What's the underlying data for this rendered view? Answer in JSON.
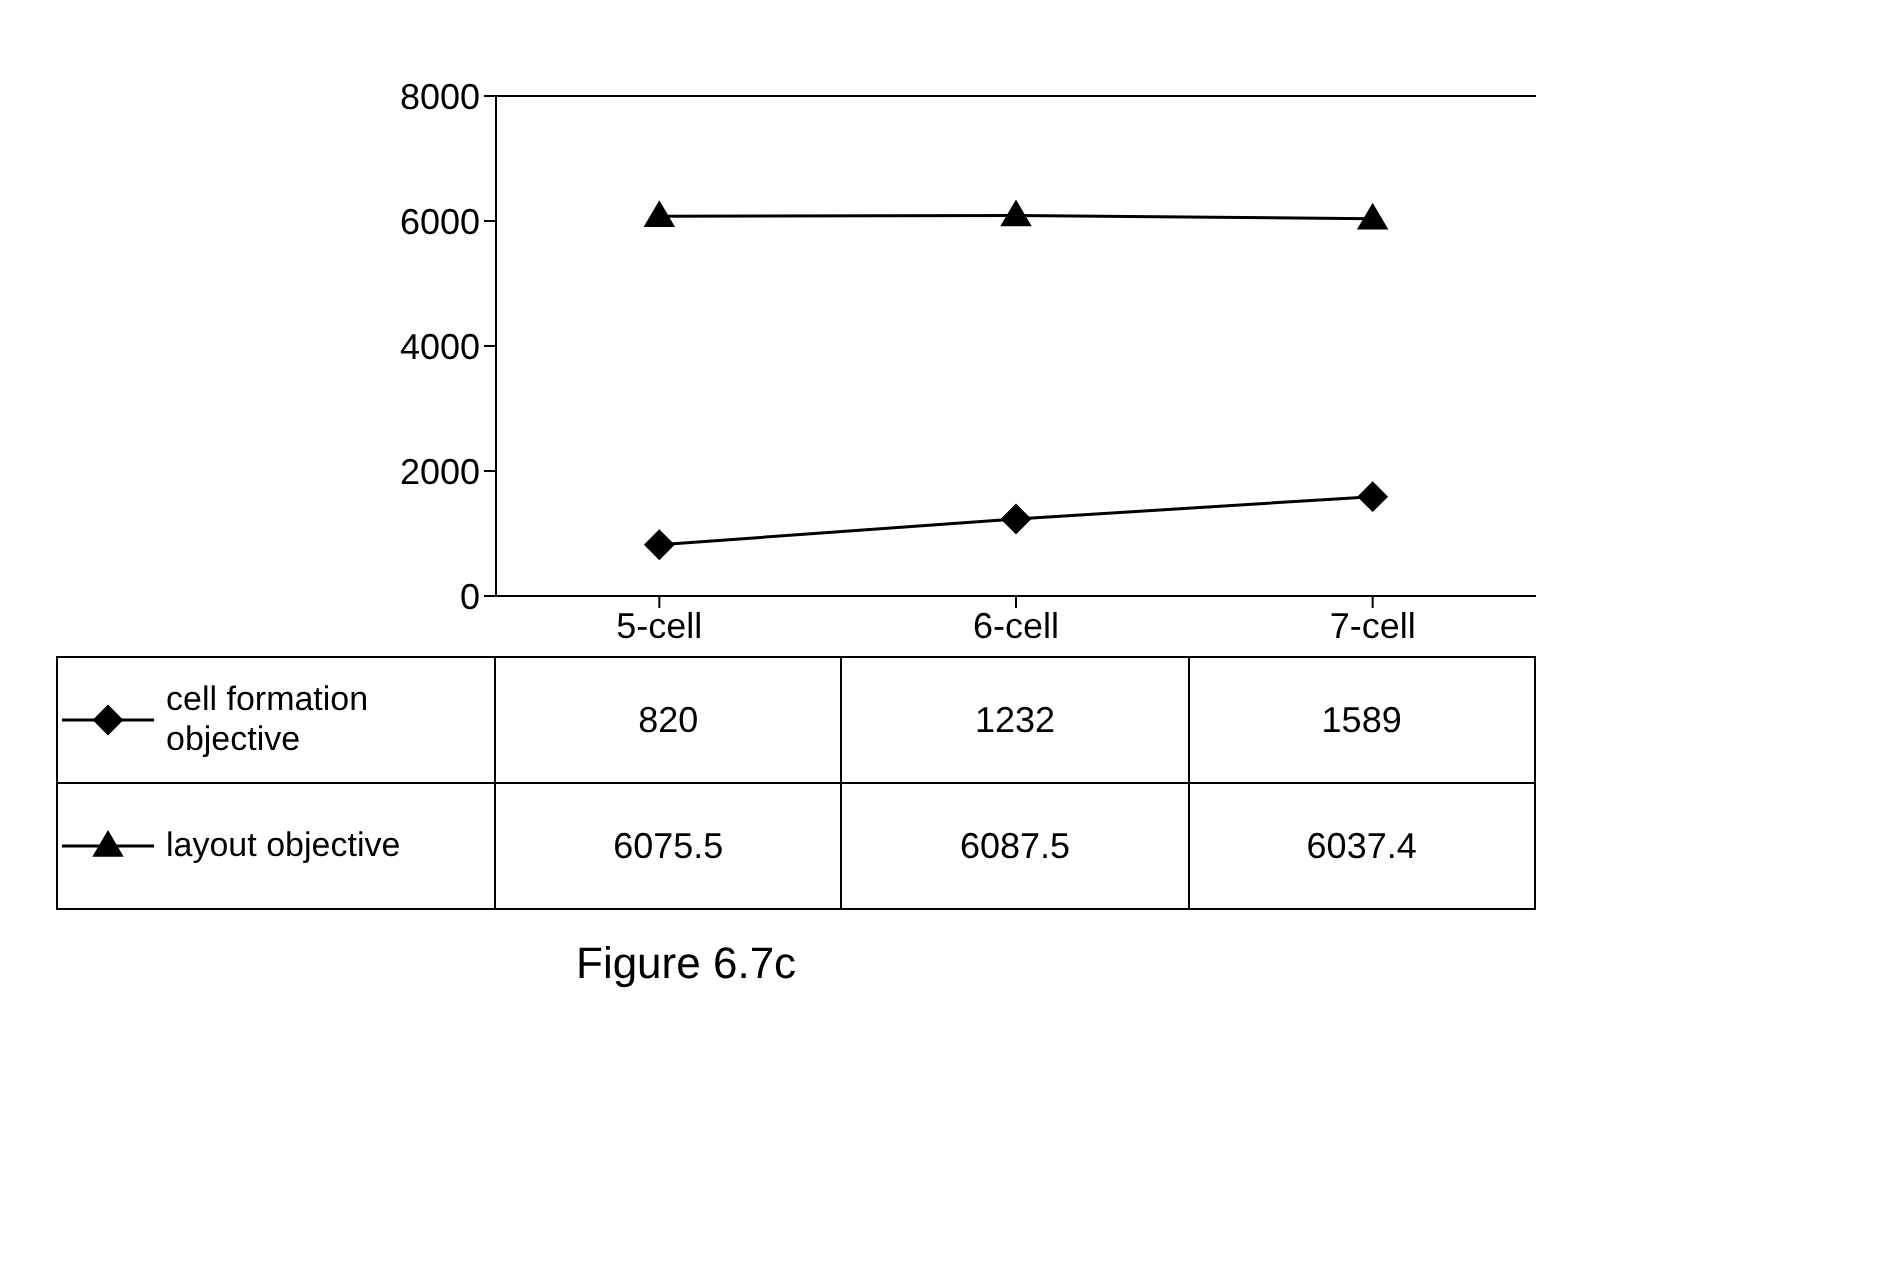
{
  "chart_data": {
    "type": "line",
    "categories": [
      "5-cell",
      "6-cell",
      "7-cell"
    ],
    "series": [
      {
        "name": "cell formation objective",
        "color": "#000000",
        "values": [
          820,
          1232,
          1589
        ],
        "marker": "diamond"
      },
      {
        "name": "layout objective",
        "color": "#000000",
        "values": [
          6075.5,
          6087.5,
          6037.4
        ],
        "marker": "triangle"
      }
    ],
    "ylim": [
      0,
      8000
    ],
    "yticks": [
      0,
      2000,
      4000,
      6000,
      8000
    ],
    "grid": false,
    "legend": "bottom left",
    "data_labels": true,
    "line_style": "solid",
    "annotations": [
      "Figure 6.7c"
    ]
  }
}
